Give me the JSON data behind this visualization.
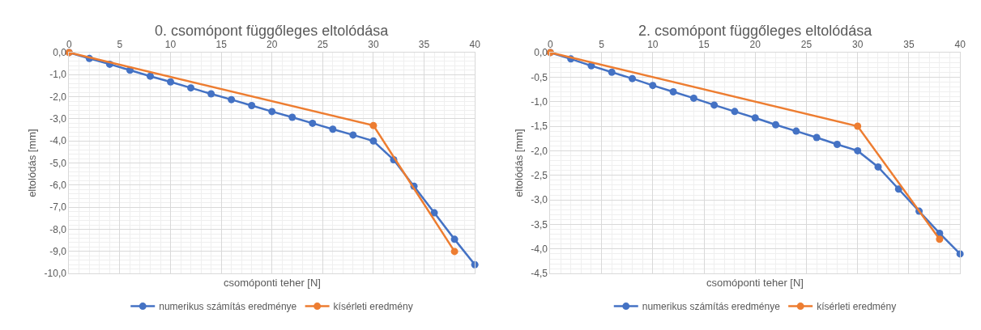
{
  "chart_data": [
    {
      "type": "line",
      "title": "0. csomópont függőleges eltolódása",
      "xlabel": "csomóponti teher [N]",
      "ylabel": "eltolódás [mm]",
      "xlim": [
        0,
        40
      ],
      "xticks": [
        0,
        5,
        10,
        15,
        20,
        25,
        30,
        35,
        40
      ],
      "ylim": [
        -10,
        0
      ],
      "yticks": [
        {
          "value": 0,
          "label": "0,0"
        },
        {
          "value": -1,
          "label": "-1,0"
        },
        {
          "value": -2,
          "label": "-2,0"
        },
        {
          "value": -3,
          "label": "-3,0"
        },
        {
          "value": -4,
          "label": "-4,0"
        },
        {
          "value": -5,
          "label": "-5,0"
        },
        {
          "value": -6,
          "label": "-6,0"
        },
        {
          "value": -7,
          "label": "-7,0"
        },
        {
          "value": -8,
          "label": "-8,0"
        },
        {
          "value": -9,
          "label": "-9,0"
        },
        {
          "value": -10,
          "label": "-10,0"
        }
      ],
      "grid": true,
      "legend": "bottom",
      "marker": "circle",
      "line_style": "solid",
      "series": [
        {
          "name": "numerikus számítás eredménye",
          "color": "#4472c4",
          "x": [
            0,
            2,
            4,
            6,
            8,
            10,
            12,
            14,
            16,
            18,
            20,
            22,
            24,
            26,
            28,
            30,
            32,
            34,
            36,
            38,
            40
          ],
          "values": [
            0,
            -0.27,
            -0.53,
            -0.8,
            -1.07,
            -1.33,
            -1.6,
            -1.87,
            -2.13,
            -2.4,
            -2.67,
            -2.93,
            -3.2,
            -3.47,
            -3.73,
            -4.0,
            -4.85,
            -6.05,
            -7.25,
            -8.45,
            -9.6
          ]
        },
        {
          "name": "kísérleti eredmény",
          "color": "#ed7d31",
          "x": [
            0,
            30,
            38
          ],
          "values": [
            0,
            -3.3,
            -9.0
          ]
        }
      ]
    },
    {
      "type": "line",
      "title": "2. csomópont függőleges eltolódása",
      "xlabel": "csomóponti teher [N]",
      "ylabel": "eltolódás [mm]",
      "xlim": [
        0,
        40
      ],
      "xticks": [
        0,
        5,
        10,
        15,
        20,
        25,
        30,
        35,
        40
      ],
      "ylim": [
        -4.5,
        0
      ],
      "yticks": [
        {
          "value": 0,
          "label": "0,0"
        },
        {
          "value": -0.5,
          "label": "-0,5"
        },
        {
          "value": -1,
          "label": "-1,0"
        },
        {
          "value": -1.5,
          "label": "-1,5"
        },
        {
          "value": -2,
          "label": "-2,0"
        },
        {
          "value": -2.5,
          "label": "-2,5"
        },
        {
          "value": -3,
          "label": "-3,0"
        },
        {
          "value": -3.5,
          "label": "-3,5"
        },
        {
          "value": -4,
          "label": "-4,0"
        },
        {
          "value": -4.5,
          "label": "-4,5"
        }
      ],
      "grid": true,
      "legend": "bottom",
      "marker": "circle",
      "line_style": "solid",
      "series": [
        {
          "name": "numerikus számítás eredménye",
          "color": "#4472c4",
          "x": [
            0,
            2,
            4,
            6,
            8,
            10,
            12,
            14,
            16,
            18,
            20,
            22,
            24,
            26,
            28,
            30,
            32,
            34,
            36,
            38,
            40
          ],
          "values": [
            0,
            -0.13,
            -0.27,
            -0.4,
            -0.53,
            -0.67,
            -0.8,
            -0.93,
            -1.07,
            -1.2,
            -1.33,
            -1.47,
            -1.6,
            -1.73,
            -1.87,
            -2.0,
            -2.33,
            -2.78,
            -3.23,
            -3.68,
            -4.1
          ]
        },
        {
          "name": "kísérleti eredmény",
          "color": "#ed7d31",
          "x": [
            0,
            30,
            38
          ],
          "values": [
            0,
            -1.5,
            -3.8
          ]
        }
      ]
    }
  ]
}
